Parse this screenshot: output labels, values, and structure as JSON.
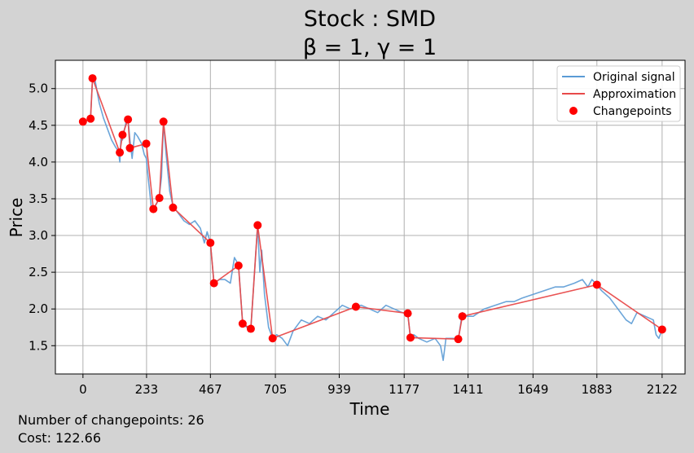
{
  "chart_data": {
    "type": "line",
    "title": "Stock : SMD",
    "subtitle": "β = 1, γ = 1",
    "xlabel": "Time",
    "ylabel": "Price",
    "xlim": [
      -101,
      2206
    ],
    "ylim": [
      1.115,
      5.385
    ],
    "xticks": [
      0,
      233,
      467,
      705,
      939,
      1177,
      1411,
      1649,
      1883,
      2122
    ],
    "yticks": [
      1.5,
      2.0,
      2.5,
      3.0,
      3.5,
      4.0,
      4.5,
      5.0
    ],
    "ytick_labels": [
      "1.5",
      "2.0",
      "2.5",
      "3.0",
      "3.5",
      "4.0",
      "4.5",
      "5.0"
    ],
    "grid": true,
    "legend_position": "top-right",
    "legend": [
      {
        "label": "Original signal",
        "kind": "line",
        "color": "#5b9bd5"
      },
      {
        "label": "Approximation",
        "kind": "line",
        "color": "#e84a4a"
      },
      {
        "label": "Changepoints",
        "kind": "marker",
        "color": "#ff0000"
      }
    ],
    "series": [
      {
        "name": "Original signal",
        "color": "#5b9bd5",
        "x": [
          0,
          10,
          20,
          28,
          35,
          45,
          60,
          75,
          90,
          105,
          120,
          130,
          135,
          140,
          145,
          150,
          158,
          165,
          172,
          180,
          190,
          200,
          215,
          225,
          232,
          240,
          250,
          258,
          265,
          272,
          280,
          288,
          295,
          305,
          318,
          330,
          350,
          370,
          390,
          410,
          430,
          445,
          455,
          467,
          480,
          500,
          520,
          540,
          555,
          570,
          585,
          600,
          615,
          625,
          632,
          640,
          648,
          655,
          665,
          680,
          695,
          710,
          730,
          750,
          770,
          800,
          830,
          860,
          890,
          920,
          950,
          980,
          1000,
          1020,
          1050,
          1080,
          1110,
          1140,
          1170,
          1190,
          1200,
          1212,
          1230,
          1260,
          1290,
          1310,
          1320,
          1330,
          1345,
          1360,
          1375,
          1390,
          1405,
          1430,
          1470,
          1510,
          1550,
          1580,
          1610,
          1650,
          1690,
          1730,
          1760,
          1800,
          1830,
          1850,
          1865,
          1883,
          1900,
          1930,
          1960,
          1990,
          2010,
          2030,
          2060,
          2090,
          2100,
          2110,
          2122
        ],
        "y": [
          4.55,
          4.56,
          4.58,
          4.62,
          5.14,
          5.1,
          4.8,
          4.6,
          4.45,
          4.3,
          4.2,
          4.15,
          4.0,
          4.4,
          4.3,
          4.4,
          4.55,
          4.6,
          4.3,
          4.05,
          4.4,
          4.35,
          4.25,
          4.1,
          4.05,
          3.75,
          3.4,
          3.38,
          3.4,
          3.45,
          3.55,
          3.8,
          4.55,
          4.1,
          3.6,
          3.4,
          3.3,
          3.2,
          3.15,
          3.2,
          3.1,
          2.9,
          3.05,
          2.9,
          2.35,
          2.4,
          2.4,
          2.35,
          2.7,
          2.6,
          1.8,
          1.75,
          1.72,
          2.3,
          2.7,
          3.14,
          2.5,
          2.8,
          2.2,
          1.75,
          1.6,
          1.65,
          1.6,
          1.5,
          1.7,
          1.85,
          1.8,
          1.9,
          1.85,
          1.95,
          2.05,
          2.0,
          2.03,
          2.05,
          2.0,
          1.95,
          2.05,
          2.0,
          1.95,
          1.94,
          1.6,
          1.65,
          1.6,
          1.55,
          1.6,
          1.5,
          1.3,
          1.6,
          1.6,
          1.6,
          1.58,
          1.95,
          1.9,
          1.9,
          2.0,
          2.05,
          2.1,
          2.1,
          2.15,
          2.2,
          2.25,
          2.3,
          2.3,
          2.35,
          2.4,
          2.3,
          2.4,
          2.33,
          2.25,
          2.15,
          2.0,
          1.85,
          1.8,
          1.95,
          1.9,
          1.85,
          1.65,
          1.6,
          1.72
        ]
      },
      {
        "name": "Approximation",
        "color": "#e84a4a",
        "x": [
          0,
          28,
          35,
          135,
          145,
          165,
          172,
          232,
          258,
          280,
          295,
          330,
          467,
          480,
          570,
          585,
          615,
          640,
          695,
          1000,
          1190,
          1200,
          1375,
          1390,
          1883,
          2122
        ],
        "y": [
          4.55,
          4.59,
          5.14,
          4.13,
          4.37,
          4.58,
          4.19,
          4.25,
          3.36,
          3.51,
          4.55,
          3.38,
          2.9,
          2.35,
          2.59,
          1.8,
          1.73,
          3.14,
          1.6,
          2.03,
          1.94,
          1.61,
          1.59,
          1.9,
          2.33,
          1.72
        ]
      }
    ],
    "changepoints": {
      "name": "Changepoints",
      "color": "#ff0000",
      "x": [
        0,
        28,
        35,
        135,
        145,
        165,
        172,
        232,
        258,
        280,
        295,
        330,
        467,
        480,
        570,
        585,
        615,
        640,
        695,
        1000,
        1190,
        1200,
        1375,
        1390,
        1883,
        2122
      ],
      "y": [
        4.55,
        4.59,
        5.14,
        4.13,
        4.37,
        4.58,
        4.19,
        4.25,
        3.36,
        3.51,
        4.55,
        3.38,
        2.9,
        2.35,
        2.59,
        1.8,
        1.73,
        3.14,
        1.6,
        2.03,
        1.94,
        1.61,
        1.59,
        1.9,
        2.33,
        1.72
      ]
    }
  },
  "footer": {
    "changepoints_text": "Number of changepoints: 26",
    "cost_text": "Cost: 122.66"
  }
}
